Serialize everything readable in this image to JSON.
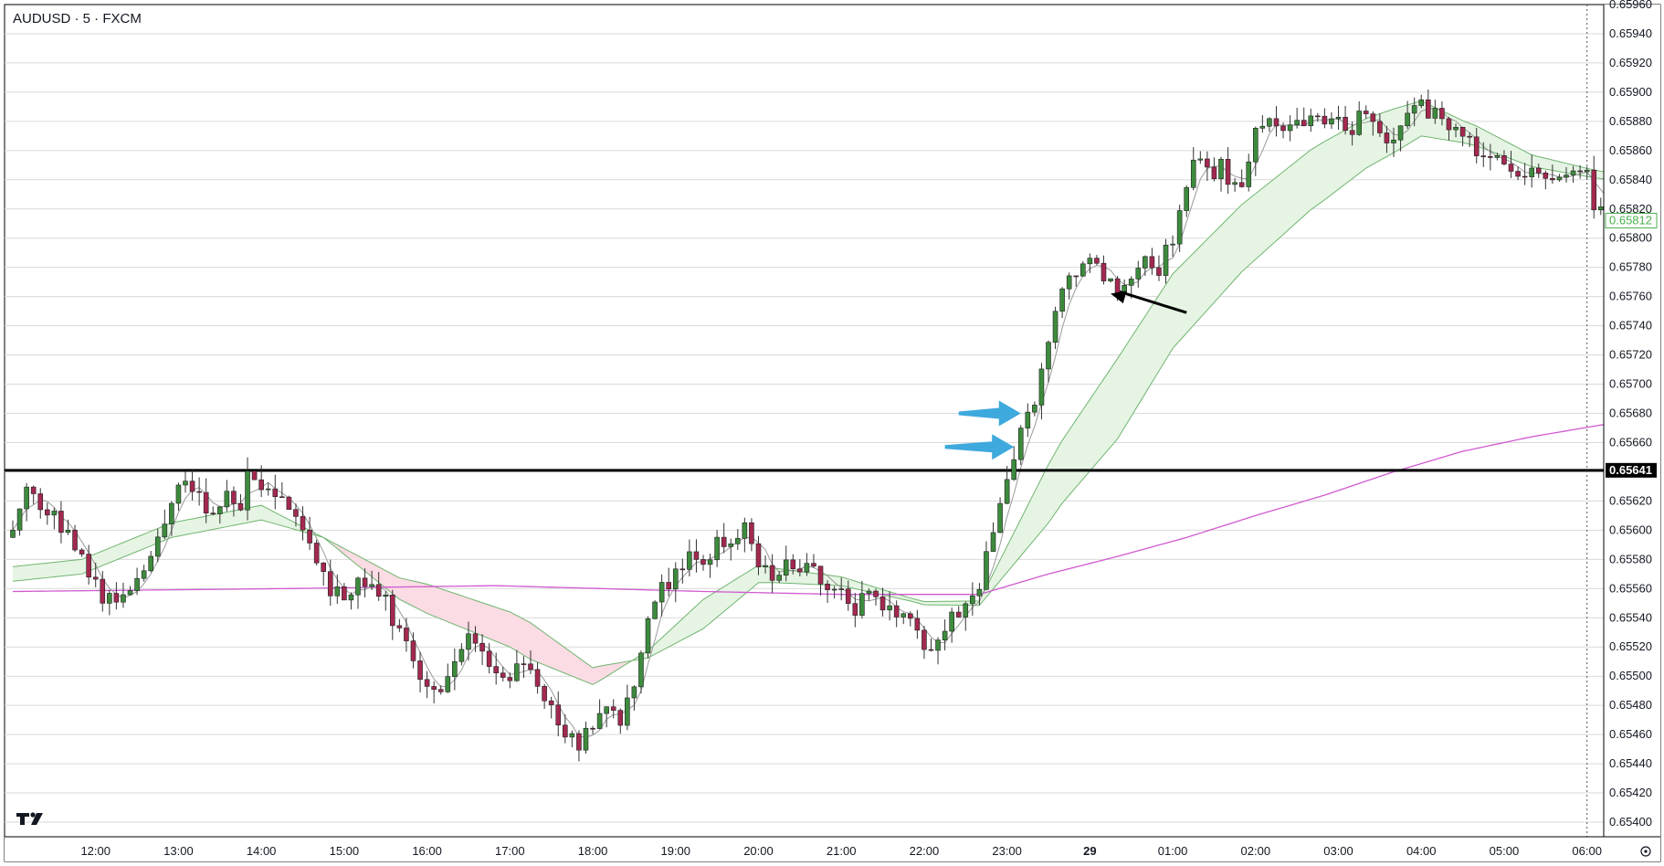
{
  "header": {
    "title": "AUDUSD · 5 · FXCM"
  },
  "colors": {
    "up": "#3d8b3d",
    "down": "#a3294f",
    "wick": "#333333",
    "grid": "#d9d9d9",
    "fast_ma": "#9a9a9a",
    "ema_band_line": "#6fb56f",
    "band_bull_fill": "#e6f4e4",
    "band_bear_fill": "#fbdbe4",
    "slow_ma": "#d05ad0",
    "level_line": "#000000",
    "arrow_blue": "#3ea9dd",
    "arrow_black": "#000000",
    "last_price_box": "#4caf50"
  },
  "chart_data": {
    "type": "candlestick",
    "symbol": "AUDUSD",
    "timeframe": "5",
    "source": "FXCM",
    "ylim": [
      0.6539,
      0.6596
    ],
    "y_ticks": [
      "0.65960",
      "0.65940",
      "0.65920",
      "0.65900",
      "0.65880",
      "0.65860",
      "0.65840",
      "0.65820",
      "0.65800",
      "0.65780",
      "0.65760",
      "0.65740",
      "0.65720",
      "0.65700",
      "0.65680",
      "0.65660",
      "0.65640",
      "0.65620",
      "0.65600",
      "0.65580",
      "0.65560",
      "0.65540",
      "0.65520",
      "0.65500",
      "0.65480",
      "0.65460",
      "0.65440",
      "0.65420",
      "0.65400"
    ],
    "x_ticks": [
      {
        "label": "12:00",
        "bar": 12
      },
      {
        "label": "13:00",
        "bar": 24
      },
      {
        "label": "14:00",
        "bar": 36
      },
      {
        "label": "15:00",
        "bar": 48
      },
      {
        "label": "16:00",
        "bar": 60
      },
      {
        "label": "17:00",
        "bar": 72
      },
      {
        "label": "18:00",
        "bar": 84
      },
      {
        "label": "19:00",
        "bar": 96
      },
      {
        "label": "20:00",
        "bar": 108
      },
      {
        "label": "21:00",
        "bar": 120
      },
      {
        "label": "22:00",
        "bar": 132
      },
      {
        "label": "23:00",
        "bar": 144
      },
      {
        "label": "29",
        "bar": 156,
        "bold": true
      },
      {
        "label": "01:00",
        "bar": 168
      },
      {
        "label": "02:00",
        "bar": 180
      },
      {
        "label": "03:00",
        "bar": 192
      },
      {
        "label": "04:00",
        "bar": 204
      },
      {
        "label": "05:00",
        "bar": 216
      },
      {
        "label": "06:00",
        "bar": 228
      }
    ],
    "anchors": [
      [
        0,
        0.656
      ],
      [
        2,
        0.6563
      ],
      [
        5,
        0.65615
      ],
      [
        8,
        0.65595
      ],
      [
        11,
        0.6557
      ],
      [
        13,
        0.65555
      ],
      [
        16,
        0.6555
      ],
      [
        19,
        0.6557
      ],
      [
        21,
        0.6559
      ],
      [
        23,
        0.65615
      ],
      [
        25,
        0.65635
      ],
      [
        27,
        0.6562
      ],
      [
        29,
        0.6561
      ],
      [
        31,
        0.65625
      ],
      [
        33,
        0.65615
      ],
      [
        34,
        0.6564
      ],
      [
        36,
        0.6563
      ],
      [
        38,
        0.65625
      ],
      [
        40,
        0.6562
      ],
      [
        42,
        0.65595
      ],
      [
        44,
        0.6558
      ],
      [
        46,
        0.6556
      ],
      [
        48,
        0.65555
      ],
      [
        50,
        0.65565
      ],
      [
        52,
        0.6556
      ],
      [
        54,
        0.6555
      ],
      [
        56,
        0.6553
      ],
      [
        58,
        0.6551
      ],
      [
        60,
        0.65495
      ],
      [
        62,
        0.6549
      ],
      [
        64,
        0.65505
      ],
      [
        66,
        0.65525
      ],
      [
        68,
        0.6552
      ],
      [
        70,
        0.65505
      ],
      [
        72,
        0.65495
      ],
      [
        74,
        0.6551
      ],
      [
        76,
        0.6549
      ],
      [
        78,
        0.6548
      ],
      [
        80,
        0.6546
      ],
      [
        82,
        0.65455
      ],
      [
        84,
        0.6547
      ],
      [
        86,
        0.6548
      ],
      [
        88,
        0.6547
      ],
      [
        90,
        0.65495
      ],
      [
        92,
        0.6554
      ],
      [
        94,
        0.6556
      ],
      [
        96,
        0.6557
      ],
      [
        98,
        0.65585
      ],
      [
        100,
        0.6558
      ],
      [
        102,
        0.6559
      ],
      [
        104,
        0.65595
      ],
      [
        106,
        0.656
      ],
      [
        108,
        0.6558
      ],
      [
        110,
        0.6557
      ],
      [
        112,
        0.65575
      ],
      [
        114,
        0.6557
      ],
      [
        116,
        0.65575
      ],
      [
        118,
        0.6556
      ],
      [
        120,
        0.65555
      ],
      [
        122,
        0.65545
      ],
      [
        124,
        0.6556
      ],
      [
        126,
        0.6555
      ],
      [
        128,
        0.65545
      ],
      [
        130,
        0.6554
      ],
      [
        132,
        0.6552
      ],
      [
        134,
        0.65525
      ],
      [
        136,
        0.6554
      ],
      [
        138,
        0.6555
      ],
      [
        140,
        0.6556
      ],
      [
        142,
        0.656
      ],
      [
        144,
        0.6564
      ],
      [
        146,
        0.65665
      ],
      [
        148,
        0.6569
      ],
      [
        150,
        0.6573
      ],
      [
        152,
        0.65765
      ],
      [
        154,
        0.6578
      ],
      [
        156,
        0.6579
      ],
      [
        158,
        0.65775
      ],
      [
        160,
        0.6576
      ],
      [
        162,
        0.65775
      ],
      [
        164,
        0.65785
      ],
      [
        166,
        0.6578
      ],
      [
        168,
        0.658
      ],
      [
        170,
        0.6584
      ],
      [
        172,
        0.65855
      ],
      [
        174,
        0.65845
      ],
      [
        175,
        0.6586
      ],
      [
        176,
        0.65835
      ],
      [
        178,
        0.6584
      ],
      [
        180,
        0.65875
      ],
      [
        182,
        0.6588
      ],
      [
        184,
        0.6587
      ],
      [
        186,
        0.6588
      ],
      [
        188,
        0.65885
      ],
      [
        190,
        0.6588
      ],
      [
        192,
        0.6588
      ],
      [
        194,
        0.65875
      ],
      [
        196,
        0.6589
      ],
      [
        198,
        0.6587
      ],
      [
        200,
        0.65865
      ],
      [
        202,
        0.6588
      ],
      [
        204,
        0.6589
      ],
      [
        206,
        0.65885
      ],
      [
        208,
        0.6588
      ],
      [
        210,
        0.65875
      ],
      [
        212,
        0.6586
      ],
      [
        214,
        0.65855
      ],
      [
        216,
        0.6585
      ],
      [
        218,
        0.65848
      ],
      [
        220,
        0.65845
      ],
      [
        222,
        0.6584
      ],
      [
        224,
        0.65845
      ],
      [
        226,
        0.6585
      ],
      [
        228,
        0.6585
      ],
      [
        229,
        0.6582
      ],
      [
        231,
        0.65825
      ],
      [
        232,
        0.65832
      ],
      [
        233,
        0.65812
      ]
    ],
    "pivots": [
      [
        0,
        0.6557
      ],
      [
        10,
        0.65575
      ],
      [
        23,
        0.656
      ],
      [
        36,
        0.65612
      ],
      [
        45,
        0.65595
      ],
      [
        56,
        0.6556
      ],
      [
        72,
        0.65532
      ],
      [
        84,
        0.655
      ],
      [
        92,
        0.65515
      ],
      [
        108,
        0.6557
      ],
      [
        120,
        0.65565
      ],
      [
        132,
        0.6555
      ],
      [
        140,
        0.6555
      ],
      [
        146,
        0.65595
      ],
      [
        152,
        0.6564
      ],
      [
        160,
        0.6569
      ],
      [
        168,
        0.6575
      ],
      [
        178,
        0.658
      ],
      [
        188,
        0.6584
      ],
      [
        196,
        0.65865
      ],
      [
        204,
        0.65882
      ],
      [
        212,
        0.6587
      ],
      [
        220,
        0.65853
      ],
      [
        228,
        0.65845
      ],
      [
        234,
        0.6584
      ]
    ],
    "band_spread": [
      [
        0,
        0.0001
      ],
      [
        36,
        0.0001
      ],
      [
        45,
        0.0
      ],
      [
        60,
        -0.0002
      ],
      [
        75,
        -0.00025
      ],
      [
        85,
        -0.0001
      ],
      [
        92,
        5e-05
      ],
      [
        100,
        0.0002
      ],
      [
        110,
        0.0001
      ],
      [
        130,
        2e-05
      ],
      [
        140,
        3e-05
      ],
      [
        150,
        0.0004
      ],
      [
        160,
        0.00055
      ],
      [
        170,
        0.0005
      ],
      [
        180,
        0.00045
      ],
      [
        190,
        0.0004
      ],
      [
        200,
        0.0003
      ],
      [
        210,
        0.00015
      ],
      [
        220,
        8e-05
      ],
      [
        230,
        5e-05
      ],
      [
        234,
        5e-05
      ]
    ],
    "slow_ma": [
      [
        0,
        0.65558
      ],
      [
        40,
        0.6556
      ],
      [
        70,
        0.65562
      ],
      [
        100,
        0.65558
      ],
      [
        120,
        0.65556
      ],
      [
        140,
        0.65556
      ],
      [
        150,
        0.6557
      ],
      [
        160,
        0.65582
      ],
      [
        170,
        0.65595
      ],
      [
        180,
        0.6561
      ],
      [
        190,
        0.65624
      ],
      [
        200,
        0.6564
      ],
      [
        210,
        0.65654
      ],
      [
        220,
        0.65664
      ],
      [
        230,
        0.65672
      ],
      [
        234,
        0.65674
      ]
    ],
    "level_line": {
      "value": 0.65641,
      "label": "0.65641"
    },
    "last_price": {
      "value": 0.65812,
      "label": "0.65812"
    },
    "annotations": [
      {
        "type": "arrow",
        "color": "blue",
        "target_bar": 146,
        "target_value": 0.6568,
        "from_bar": 137,
        "from_value": 0.6568
      },
      {
        "type": "arrow",
        "color": "blue",
        "target_bar": 145,
        "target_value": 0.65657,
        "from_bar": 135,
        "from_value": 0.65657
      },
      {
        "type": "arrow",
        "color": "black",
        "target_bar": 159,
        "target_value": 0.65762,
        "from_bar": 170,
        "from_value": 0.65749
      }
    ],
    "crosshair_bar": 228,
    "legend": "none",
    "grid": true
  }
}
